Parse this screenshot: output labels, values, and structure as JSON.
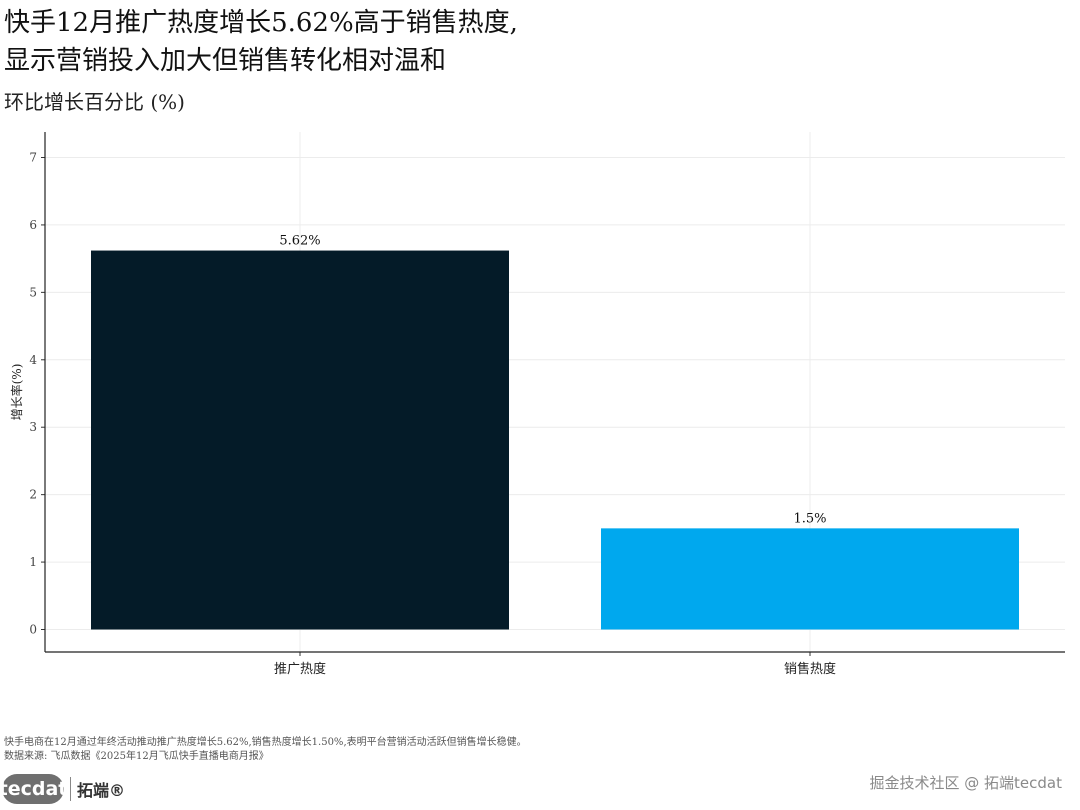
{
  "header": {
    "title_line1": "快手12月推广热度增长5.62%高于销售热度,",
    "title_line2": "显示营销投入加大但销售转化相对温和",
    "subtitle": "环比增长百分比 (%)"
  },
  "chart_data": {
    "type": "bar",
    "categories": [
      "推广热度",
      "销售热度"
    ],
    "values": [
      5.62,
      1.5
    ],
    "data_labels": [
      "5.62%",
      "1.5%"
    ],
    "colors": [
      "#041b28",
      "#00a8ee"
    ],
    "ylabel": "增长率(%)",
    "xlabel": "",
    "ylim": [
      0,
      7
    ],
    "yticks": [
      0,
      1,
      2,
      3,
      4,
      5,
      6,
      7
    ],
    "grid": true,
    "legend": "none"
  },
  "footer": {
    "note": "快手电商在12月通过年终活动推动推广热度增长5.62%,销售热度增长1.50%,表明平台营销活动活跃但销售增长稳健。",
    "source": "数据来源: 飞瓜数据《2025年12月飞瓜快手直播电商月报》"
  },
  "branding": {
    "logo_text": "tecdat",
    "logo_cn": "拓端®",
    "watermark": "掘金技术社区 @ 拓端tecdat"
  }
}
